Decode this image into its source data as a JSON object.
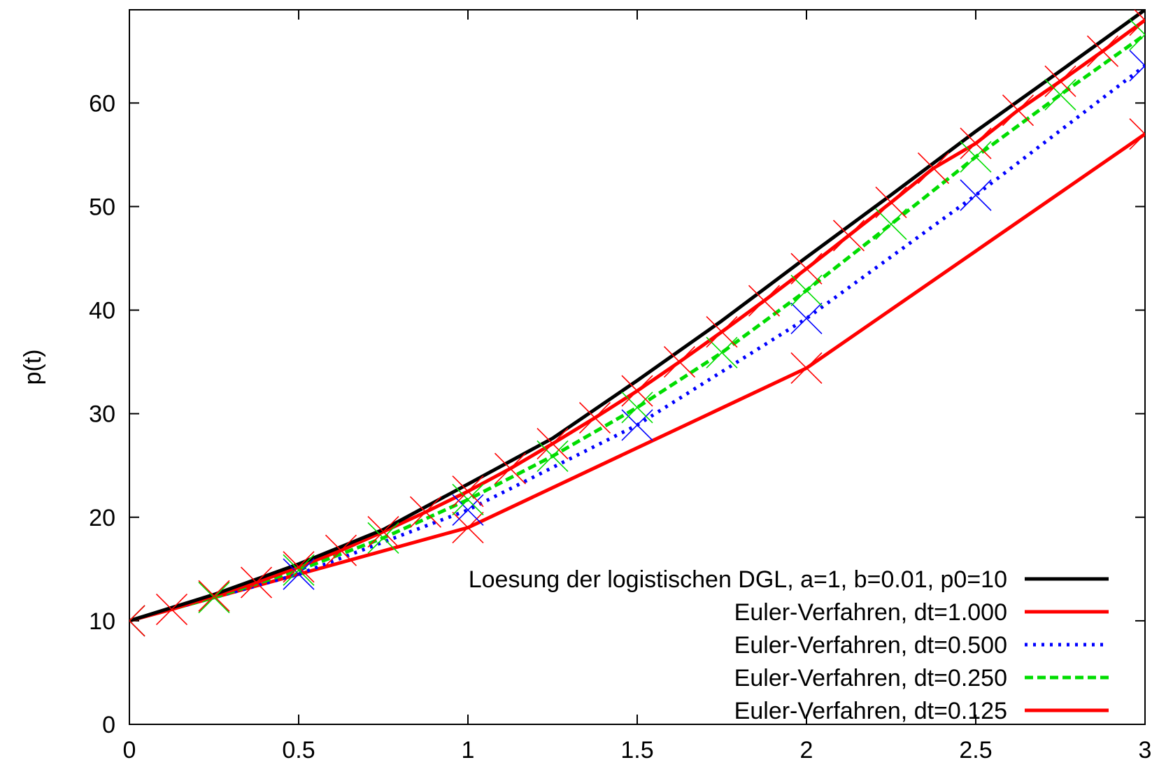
{
  "chart_data": {
    "type": "line",
    "title": "",
    "xlabel": "",
    "ylabel": "p(t)",
    "xlim": [
      0,
      3
    ],
    "ylim": [
      0,
      69
    ],
    "x_ticks": [
      "0",
      "0.5",
      "1",
      "1.5",
      "2",
      "2.5",
      "3"
    ],
    "y_ticks": [
      "0",
      "10",
      "20",
      "30",
      "40",
      "50",
      "60"
    ],
    "grid": false,
    "legend_position": "bottom-right",
    "series": [
      {
        "name": "Loesung der logistischen DGL, a=1, b=0.01, p0=10",
        "color": "#000000",
        "dash": "solid",
        "markers": false,
        "points": [
          [
            0,
            10
          ],
          [
            0.25,
            12.54
          ],
          [
            0.5,
            15.48
          ],
          [
            0.75,
            18.81
          ],
          [
            1,
            23.2
          ],
          [
            1.25,
            27.62
          ],
          [
            1.5,
            33.2
          ],
          [
            1.75,
            38.97
          ],
          [
            2,
            45.1
          ],
          [
            2.25,
            51.12
          ],
          [
            2.5,
            57.26
          ],
          [
            2.75,
            63.1
          ],
          [
            3,
            69.0
          ]
        ]
      },
      {
        "name": "Euler-Verfahren, dt=1.000",
        "color": "#ff0000",
        "dash": "solid",
        "markers": true,
        "points": [
          [
            0,
            10
          ],
          [
            1,
            19
          ],
          [
            2,
            34.4
          ],
          [
            3,
            57
          ]
        ]
      },
      {
        "name": "Euler-Verfahren, dt=0.500",
        "color": "#0000ff",
        "dash": "dotted",
        "markers": true,
        "points": [
          [
            0,
            10
          ],
          [
            0.5,
            14.5
          ],
          [
            1,
            20.7
          ],
          [
            1.5,
            28.9
          ],
          [
            2,
            39.2
          ],
          [
            2.5,
            51.1
          ],
          [
            3,
            63.6
          ]
        ]
      },
      {
        "name": "Euler-Verfahren, dt=0.250",
        "color": "#00dd00",
        "dash": "dashed",
        "markers": true,
        "points": [
          [
            0,
            10
          ],
          [
            0.25,
            12.25
          ],
          [
            0.5,
            14.9
          ],
          [
            0.75,
            18.0
          ],
          [
            1,
            21.7
          ],
          [
            1.25,
            25.9
          ],
          [
            1.5,
            30.6
          ],
          [
            1.75,
            35.9
          ],
          [
            2,
            41.9
          ],
          [
            2.25,
            48.3
          ],
          [
            2.5,
            54.8
          ],
          [
            2.75,
            60.8
          ],
          [
            3,
            66.6
          ]
        ]
      },
      {
        "name": "Euler-Verfahren, dt=0.125",
        "color": "#ff0000",
        "dash": "solid",
        "markers": true,
        "points": [
          [
            0,
            10
          ],
          [
            0.125,
            11.1
          ],
          [
            0.25,
            12.4
          ],
          [
            0.375,
            13.7
          ],
          [
            0.5,
            15.2
          ],
          [
            0.625,
            16.8
          ],
          [
            0.75,
            18.6
          ],
          [
            0.875,
            20.5
          ],
          [
            1,
            22.5
          ],
          [
            1.125,
            24.7
          ],
          [
            1.25,
            27.1
          ],
          [
            1.375,
            29.6
          ],
          [
            1.5,
            32.2
          ],
          [
            1.625,
            35.0
          ],
          [
            1.75,
            37.9
          ],
          [
            1.875,
            40.9
          ],
          [
            2,
            44.0
          ],
          [
            2.125,
            47.2
          ],
          [
            2.25,
            50.4
          ],
          [
            2.375,
            53.7
          ],
          [
            2.5,
            56.1
          ],
          [
            2.625,
            59.3
          ],
          [
            2.75,
            62.1
          ],
          [
            2.875,
            65.0
          ],
          [
            3,
            68.0
          ]
        ]
      }
    ]
  }
}
